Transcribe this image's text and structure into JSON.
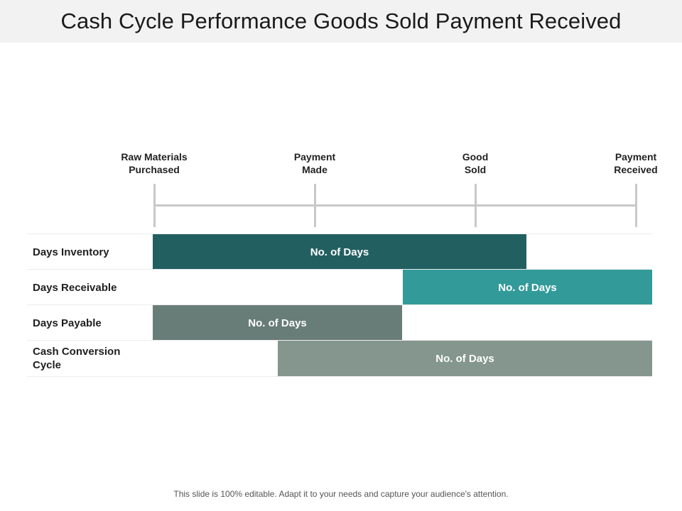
{
  "title": "Cash Cycle Performance Goods Sold Payment Received",
  "milestones": [
    {
      "line1": "Raw Materials",
      "line2": "Purchased"
    },
    {
      "line1": "Payment",
      "line2": "Made"
    },
    {
      "line1": "Good",
      "line2": "Sold"
    },
    {
      "line1": "Payment",
      "line2": "Received"
    }
  ],
  "rows": [
    {
      "label": "Days Inventory",
      "bar_label": "No. of Days",
      "color": "#225f61"
    },
    {
      "label": "Days Receivable",
      "bar_label": "No. of Days",
      "color": "#339a9a"
    },
    {
      "label": "Days Payable",
      "bar_label": "No. of Days",
      "color": "#687d77"
    },
    {
      "label": "Cash Conversion Cycle",
      "bar_label": "No. of Days",
      "color": "#84968e"
    }
  ],
  "footer": "This slide is 100% editable. Adapt it to your needs and capture your audience's attention."
}
